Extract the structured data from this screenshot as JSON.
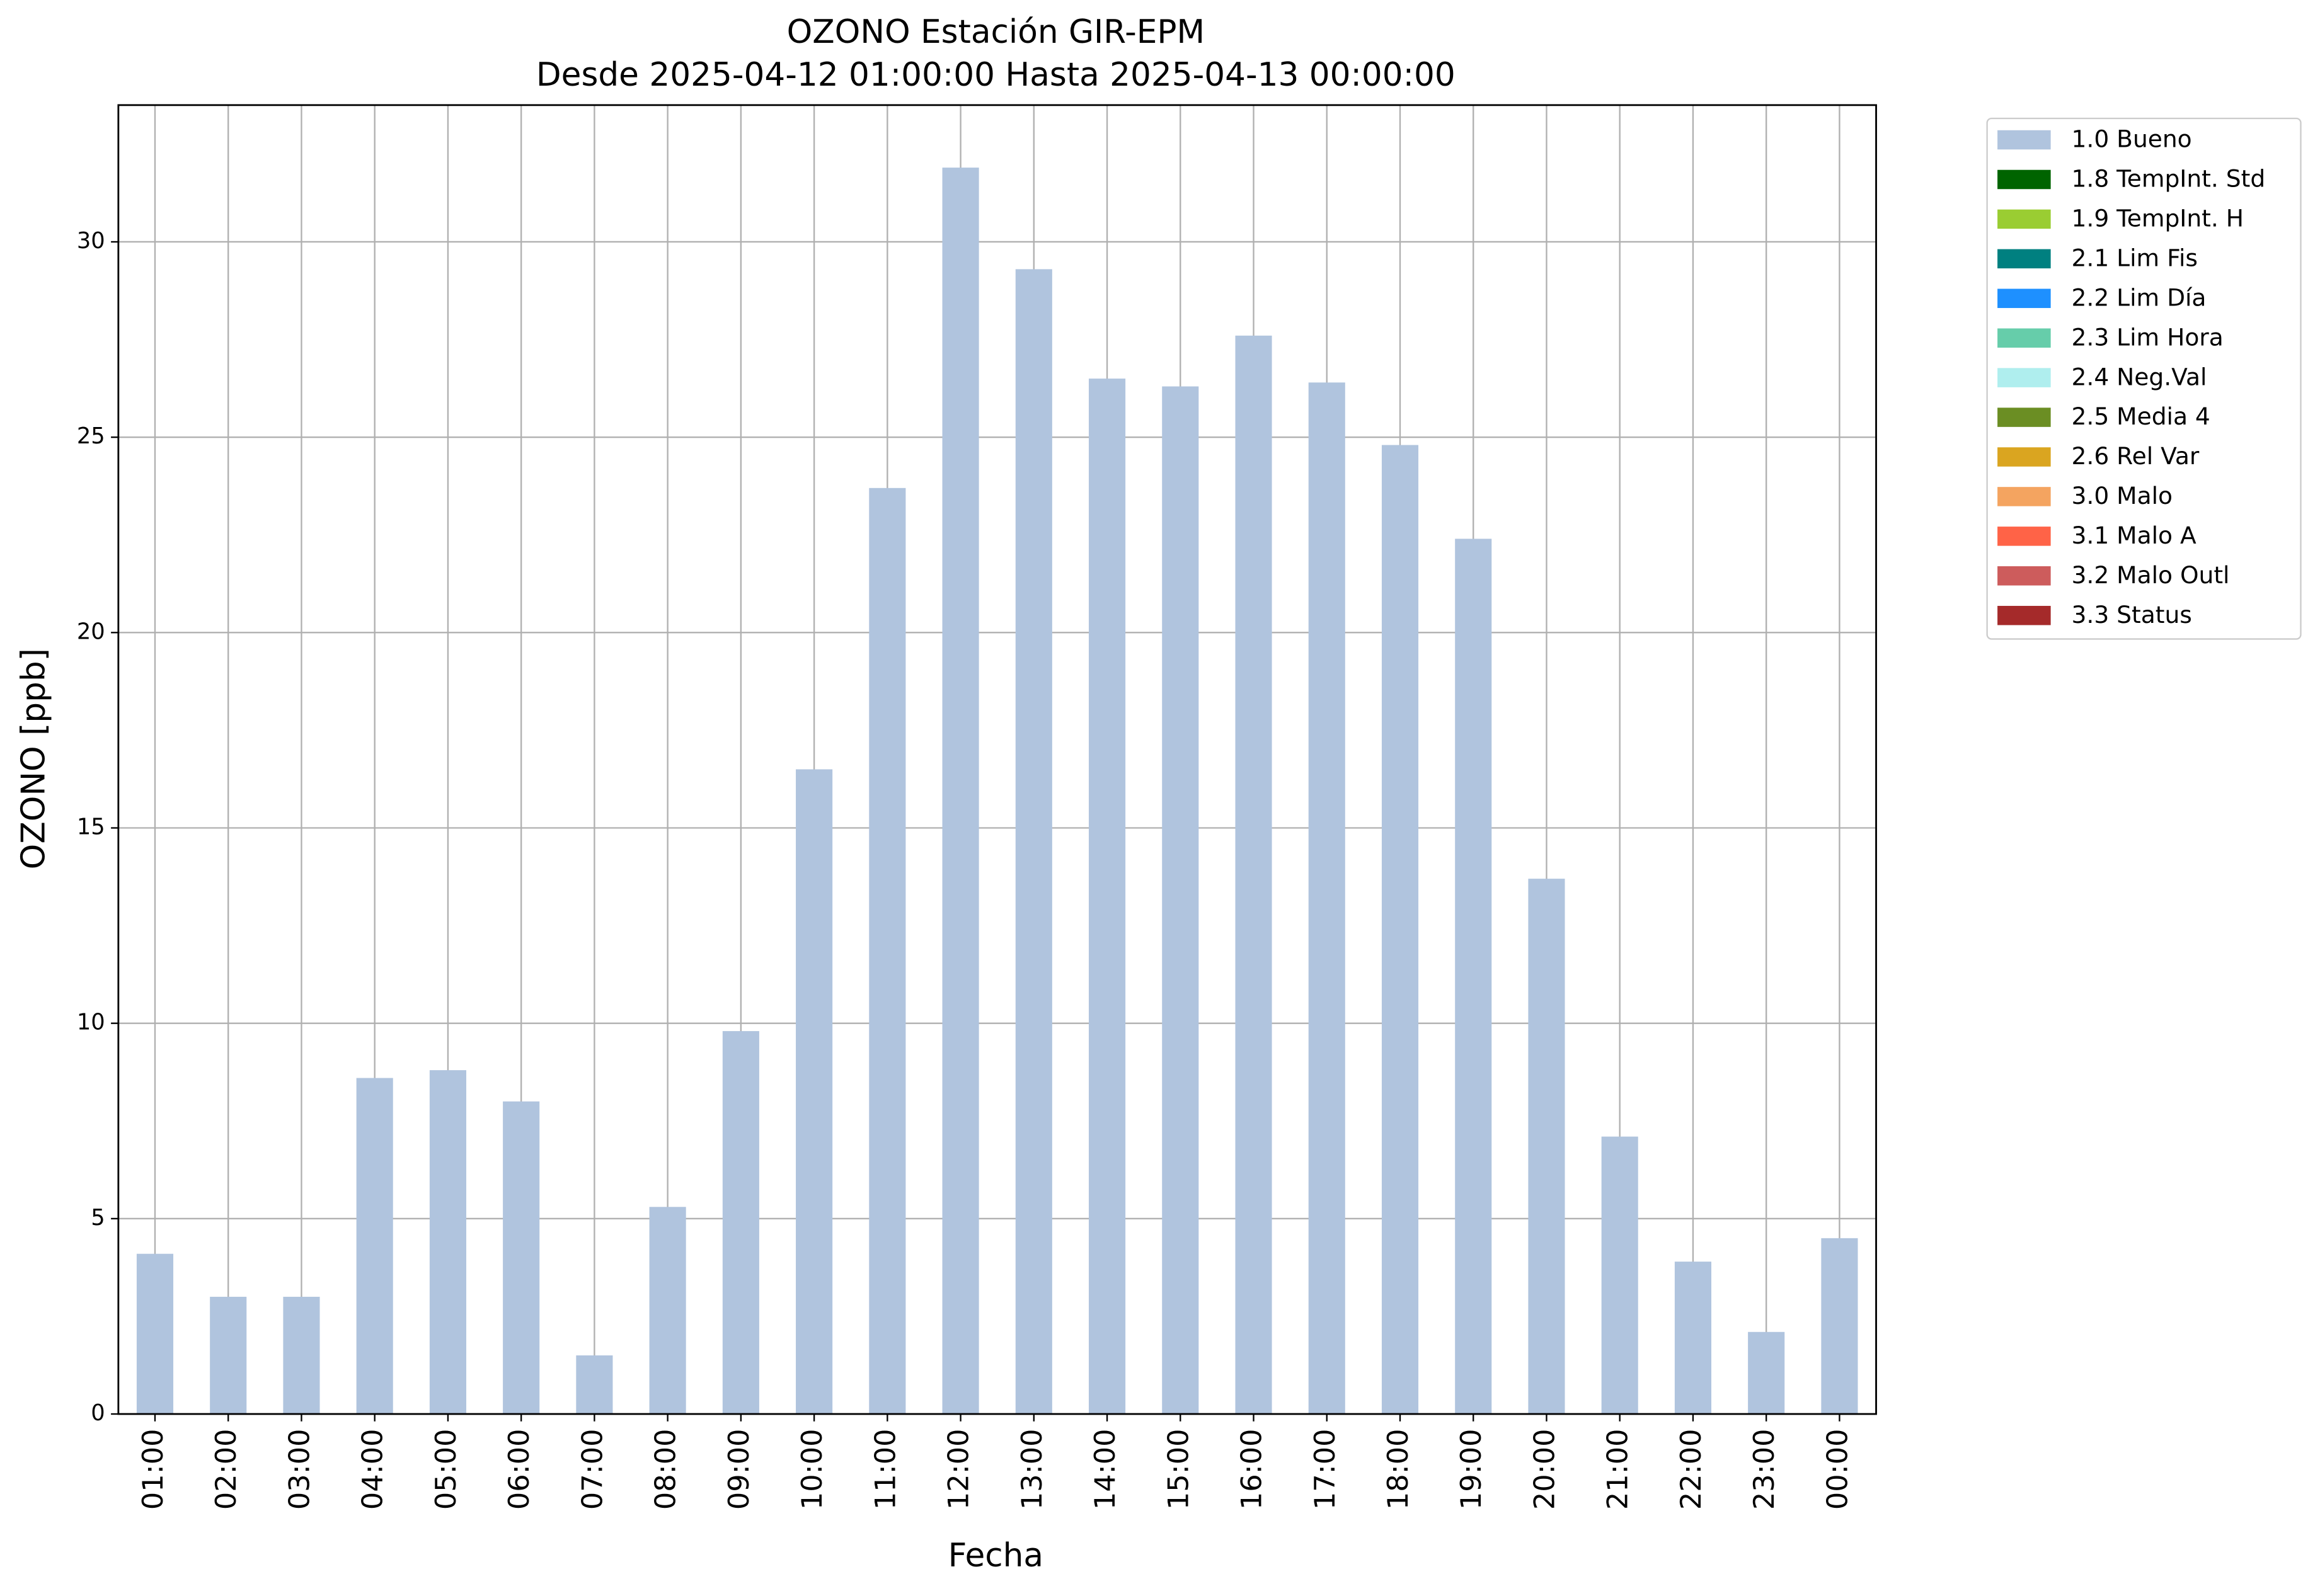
{
  "chart_data": {
    "type": "bar",
    "title": "OZONO Estación GIR-EPM",
    "subtitle": "Desde 2025-04-12 01:00:00 Hasta 2025-04-13 00:00:00",
    "x_label": "Fecha",
    "y_label": "OZONO [ppb]",
    "categories": [
      "01:00",
      "02:00",
      "03:00",
      "04:00",
      "05:00",
      "06:00",
      "07:00",
      "08:00",
      "09:00",
      "10:00",
      "11:00",
      "12:00",
      "13:00",
      "14:00",
      "15:00",
      "16:00",
      "17:00",
      "18:00",
      "19:00",
      "20:00",
      "21:00",
      "22:00",
      "23:00",
      "00:00"
    ],
    "series": [
      {
        "name": "1.0 Bueno",
        "color": "#b0c4de",
        "values": [
          4.1,
          3.0,
          3.0,
          8.6,
          8.8,
          8.0,
          1.5,
          5.3,
          9.8,
          16.5,
          23.7,
          31.9,
          29.3,
          26.5,
          26.3,
          27.6,
          26.4,
          24.8,
          22.4,
          13.7,
          7.1,
          3.9,
          2.1,
          4.5
        ]
      },
      {
        "name": "1.8 TempInt. Std",
        "color": "#006400",
        "values": [
          null,
          null,
          null,
          null,
          null,
          null,
          null,
          null,
          null,
          null,
          null,
          null,
          null,
          null,
          null,
          null,
          null,
          null,
          null,
          null,
          null,
          null,
          null,
          null
        ]
      },
      {
        "name": "1.9 TempInt. H",
        "color": "#9acd32",
        "values": [
          null,
          null,
          null,
          null,
          null,
          null,
          null,
          null,
          null,
          null,
          null,
          null,
          null,
          null,
          null,
          null,
          null,
          null,
          null,
          null,
          null,
          null,
          null,
          null
        ]
      },
      {
        "name": "2.1 Lim Fis",
        "color": "#008080",
        "values": [
          null,
          null,
          null,
          null,
          null,
          null,
          null,
          null,
          null,
          null,
          null,
          null,
          null,
          null,
          null,
          null,
          null,
          null,
          null,
          null,
          null,
          null,
          null,
          null
        ]
      },
      {
        "name": "2.2 Lim Día",
        "color": "#1e90ff",
        "values": [
          null,
          null,
          null,
          null,
          null,
          null,
          null,
          null,
          null,
          null,
          null,
          null,
          null,
          null,
          null,
          null,
          null,
          null,
          null,
          null,
          null,
          null,
          null,
          null
        ]
      },
      {
        "name": "2.3 Lim Hora",
        "color": "#66cdaa",
        "values": [
          null,
          null,
          null,
          null,
          null,
          null,
          null,
          null,
          null,
          null,
          null,
          null,
          null,
          null,
          null,
          null,
          null,
          null,
          null,
          null,
          null,
          null,
          null,
          null
        ]
      },
      {
        "name": "2.4 Neg.Val",
        "color": "#afeeee",
        "values": [
          null,
          null,
          null,
          null,
          null,
          null,
          null,
          null,
          null,
          null,
          null,
          null,
          null,
          null,
          null,
          null,
          null,
          null,
          null,
          null,
          null,
          null,
          null,
          null
        ]
      },
      {
        "name": "2.5 Media 4",
        "color": "#6b8e23",
        "values": [
          null,
          null,
          null,
          null,
          null,
          null,
          null,
          null,
          null,
          null,
          null,
          null,
          null,
          null,
          null,
          null,
          null,
          null,
          null,
          null,
          null,
          null,
          null,
          null
        ]
      },
      {
        "name": "2.6 Rel Var",
        "color": "#daa520",
        "values": [
          null,
          null,
          null,
          null,
          null,
          null,
          null,
          null,
          null,
          null,
          null,
          null,
          null,
          null,
          null,
          null,
          null,
          null,
          null,
          null,
          null,
          null,
          null,
          null
        ]
      },
      {
        "name": "3.0 Malo",
        "color": "#f4a460",
        "values": [
          null,
          null,
          null,
          null,
          null,
          null,
          null,
          null,
          null,
          null,
          null,
          null,
          null,
          null,
          null,
          null,
          null,
          null,
          null,
          null,
          null,
          null,
          null,
          null
        ]
      },
      {
        "name": "3.1 Malo A",
        "color": "#ff6347",
        "values": [
          null,
          null,
          null,
          null,
          null,
          null,
          null,
          null,
          null,
          null,
          null,
          null,
          null,
          null,
          null,
          null,
          null,
          null,
          null,
          null,
          null,
          null,
          null,
          null
        ]
      },
      {
        "name": "3.2 Malo Outl",
        "color": "#cd5c5c",
        "values": [
          null,
          null,
          null,
          null,
          null,
          null,
          null,
          null,
          null,
          null,
          null,
          null,
          null,
          null,
          null,
          null,
          null,
          null,
          null,
          null,
          null,
          null,
          null,
          null
        ]
      },
      {
        "name": "3.3 Status",
        "color": "#a52a2a",
        "values": [
          null,
          null,
          null,
          null,
          null,
          null,
          null,
          null,
          null,
          null,
          null,
          null,
          null,
          null,
          null,
          null,
          null,
          null,
          null,
          null,
          null,
          null,
          null,
          null
        ]
      }
    ],
    "ylim": [
      0,
      33.5
    ],
    "yticks": [
      0,
      5,
      10,
      15,
      20,
      25,
      30
    ],
    "grid": true,
    "legend": "outside-upper-right"
  }
}
